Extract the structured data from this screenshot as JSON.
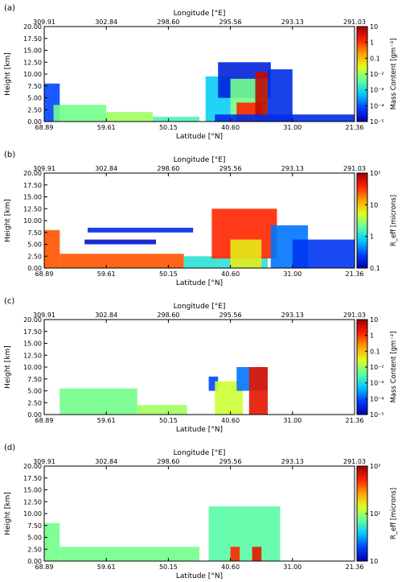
{
  "chart_data": [
    {
      "type": "heatmap",
      "panel_label": "(a)",
      "xlabel": "Latitude  [°N]",
      "x2label": "Longitude  [°E]",
      "ylabel": "Height [km]",
      "ylim": [
        0,
        20
      ],
      "yticks": [
        "0.00",
        "2.50",
        "5.00",
        "7.50",
        "10.00",
        "12.50",
        "15.00",
        "17.50",
        "20.00"
      ],
      "xticks": [
        "68.89",
        "59.61",
        "50.15",
        "40.60",
        "31.00",
        "21.36"
      ],
      "x2ticks": [
        "309.91",
        "302.84",
        "298.60",
        "295.56",
        "293.13",
        "291.03"
      ],
      "colorbar": {
        "label": "Mass Content [gm⁻³]",
        "scale": "log",
        "ticks": [
          "10",
          "1",
          "0.1",
          "10⁻²",
          "10⁻³",
          "10⁻⁴",
          "10⁻⁵"
        ],
        "colormap": [
          "#0000b0",
          "#0040ff",
          "#00c8ff",
          "#60ff9f",
          "#e0ff20",
          "#ffa000",
          "#ff2000",
          "#a00000"
        ]
      },
      "regions": [
        {
          "x0": 0.0,
          "x1": 0.05,
          "top": 8.0,
          "bottom": 0,
          "level": 0.15
        },
        {
          "x0": 0.03,
          "x1": 0.2,
          "top": 3.5,
          "bottom": 0,
          "level": 0.45
        },
        {
          "x0": 0.2,
          "x1": 0.35,
          "top": 2.0,
          "bottom": 0,
          "level": 0.5
        },
        {
          "x0": 0.35,
          "x1": 0.5,
          "top": 1.0,
          "bottom": 0,
          "level": 0.4
        },
        {
          "x0": 0.52,
          "x1": 0.6,
          "top": 9.5,
          "bottom": 0,
          "level": 0.3
        },
        {
          "x0": 0.56,
          "x1": 0.73,
          "top": 12.5,
          "bottom": 5.0,
          "level": 0.08
        },
        {
          "x0": 0.6,
          "x1": 0.72,
          "top": 9.0,
          "bottom": 0,
          "level": 0.45
        },
        {
          "x0": 0.62,
          "x1": 0.7,
          "top": 4.0,
          "bottom": 0,
          "level": 0.85
        },
        {
          "x0": 0.68,
          "x1": 0.72,
          "top": 10.5,
          "bottom": 0,
          "level": 0.95
        },
        {
          "x0": 0.72,
          "x1": 0.8,
          "top": 11.0,
          "bottom": 0,
          "level": 0.1
        },
        {
          "x0": 0.55,
          "x1": 1.0,
          "top": 1.5,
          "bottom": 0,
          "level": 0.1
        }
      ]
    },
    {
      "type": "heatmap",
      "panel_label": "(b)",
      "xlabel": "Latitude  [°N]",
      "x2label": "Longitude  [°E]",
      "ylabel": "Height [km]",
      "ylim": [
        0,
        20
      ],
      "yticks": [
        "0.00",
        "2.50",
        "5.00",
        "7.50",
        "10.00",
        "12.50",
        "15.00",
        "17.50",
        "20.00"
      ],
      "xticks": [
        "68.89",
        "59.61",
        "50.15",
        "40.60",
        "31.00",
        "21.36"
      ],
      "x2ticks": [
        "309.91",
        "302.84",
        "298.60",
        "295.56",
        "293.13",
        "291.03"
      ],
      "colorbar": {
        "label": "R_eff [microns]",
        "scale": "log",
        "ticks": [
          "10²",
          "10",
          "1",
          "0.1"
        ],
        "colormap": [
          "#0000b0",
          "#0040ff",
          "#00c8ff",
          "#60ff9f",
          "#e0ff20",
          "#ffa000",
          "#ff2000",
          "#a00000"
        ]
      },
      "regions": [
        {
          "x0": 0.0,
          "x1": 0.05,
          "top": 8.0,
          "bottom": 0,
          "level": 0.8
        },
        {
          "x0": 0.05,
          "x1": 0.45,
          "top": 3.0,
          "bottom": 0,
          "level": 0.8
        },
        {
          "x0": 0.14,
          "x1": 0.48,
          "top": 8.5,
          "bottom": 7.5,
          "level": 0.1
        },
        {
          "x0": 0.13,
          "x1": 0.36,
          "top": 6.0,
          "bottom": 5.0,
          "level": 0.05
        },
        {
          "x0": 0.45,
          "x1": 0.72,
          "top": 2.5,
          "bottom": 0,
          "level": 0.35
        },
        {
          "x0": 0.54,
          "x1": 0.75,
          "top": 12.5,
          "bottom": 2.0,
          "level": 0.85
        },
        {
          "x0": 0.6,
          "x1": 0.7,
          "top": 6.0,
          "bottom": 0,
          "level": 0.6
        },
        {
          "x0": 0.73,
          "x1": 0.85,
          "top": 9.0,
          "bottom": 0,
          "level": 0.2
        },
        {
          "x0": 0.8,
          "x1": 1.0,
          "top": 6.0,
          "bottom": 0,
          "level": 0.12
        }
      ]
    },
    {
      "type": "heatmap",
      "panel_label": "(c)",
      "xlabel": "Latitude  [°N]",
      "x2label": "Longitude  [°E]",
      "ylabel": "Height [km]",
      "ylim": [
        0,
        20
      ],
      "yticks": [
        "0.00",
        "2.50",
        "5.00",
        "7.50",
        "10.00",
        "12.50",
        "15.00",
        "17.50",
        "20.00"
      ],
      "xticks": [
        "68.89",
        "59.61",
        "50.15",
        "40.60",
        "31.00",
        "21.36"
      ],
      "x2ticks": [
        "309.91",
        "302.84",
        "298.60",
        "295.56",
        "293.13",
        "291.03"
      ],
      "colorbar": {
        "label": "Mass Content [gm⁻³]",
        "scale": "log",
        "ticks": [
          "10",
          "1",
          "0.1",
          "10⁻²",
          "10⁻³",
          "10⁻⁴",
          "10⁻⁵"
        ],
        "colormap": [
          "#0000b0",
          "#0040ff",
          "#00c8ff",
          "#60ff9f",
          "#e0ff20",
          "#ffa000",
          "#ff2000",
          "#a00000"
        ]
      },
      "regions": [
        {
          "x0": 0.05,
          "x1": 0.3,
          "top": 5.5,
          "bottom": 0,
          "level": 0.45
        },
        {
          "x0": 0.3,
          "x1": 0.46,
          "top": 2.0,
          "bottom": 0,
          "level": 0.5
        },
        {
          "x0": 0.53,
          "x1": 0.56,
          "top": 8.0,
          "bottom": 5.0,
          "level": 0.15
        },
        {
          "x0": 0.55,
          "x1": 0.64,
          "top": 7.0,
          "bottom": 0,
          "level": 0.55
        },
        {
          "x0": 0.62,
          "x1": 0.72,
          "top": 10.0,
          "bottom": 5.0,
          "level": 0.2
        },
        {
          "x0": 0.66,
          "x1": 0.72,
          "top": 10.0,
          "bottom": 0,
          "level": 0.9
        }
      ]
    },
    {
      "type": "heatmap",
      "panel_label": "(d)",
      "xlabel": "Latitude  [°N]",
      "x2label": "Longitude  [°E]",
      "ylabel": "Height [km]",
      "ylim": [
        0,
        20
      ],
      "yticks": [
        "0.00",
        "2.50",
        "5.00",
        "7.50",
        "10.00",
        "12.50",
        "15.00",
        "17.50",
        "20.00"
      ],
      "xticks": [
        "68.89",
        "59.61",
        "50.15",
        "40.60",
        "31.00",
        "21.36"
      ],
      "x2ticks": [
        "309.91",
        "302.84",
        "298.60",
        "295.56",
        "293.13",
        "291.03"
      ],
      "colorbar": {
        "label": "R_eff [microns]",
        "scale": "log",
        "ticks": [
          "10³",
          "10²",
          "10"
        ],
        "colormap": [
          "#0000b0",
          "#0040ff",
          "#00c8ff",
          "#60ff9f",
          "#e0ff20",
          "#ffa000",
          "#ff2000",
          "#a00000"
        ]
      },
      "regions": [
        {
          "x0": 0.0,
          "x1": 0.05,
          "top": 8.0,
          "bottom": 0,
          "level": 0.45
        },
        {
          "x0": 0.05,
          "x1": 0.5,
          "top": 3.0,
          "bottom": 0,
          "level": 0.45
        },
        {
          "x0": 0.53,
          "x1": 0.76,
          "top": 11.5,
          "bottom": 0,
          "level": 0.42
        },
        {
          "x0": 0.6,
          "x1": 0.63,
          "top": 3.0,
          "bottom": 0,
          "level": 0.85
        },
        {
          "x0": 0.67,
          "x1": 0.7,
          "top": 3.0,
          "bottom": 0,
          "level": 0.9
        }
      ]
    }
  ]
}
